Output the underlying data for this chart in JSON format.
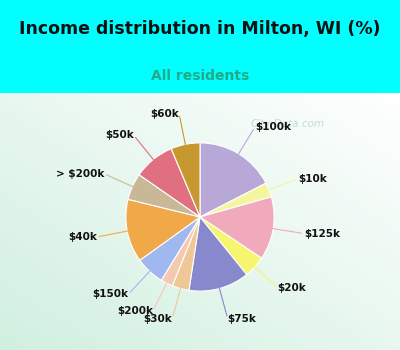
{
  "title": "Income distribution in Milton, WI (%)",
  "subtitle": "All residents",
  "watermark": "© City-Data.com",
  "labels": [
    "$100k",
    "$10k",
    "$125k",
    "$20k",
    "$75k",
    "$30k",
    "$200k",
    "$150k",
    "$40k",
    "> $200k",
    "$50k",
    "$60k"
  ],
  "values": [
    16.5,
    3.0,
    13.0,
    4.5,
    12.5,
    3.5,
    2.5,
    6.0,
    13.0,
    5.5,
    8.5,
    6.0
  ],
  "colors": [
    "#b8a8d8",
    "#f5f5a0",
    "#f0aabb",
    "#f5f570",
    "#8888cc",
    "#f0c898",
    "#f5c8b0",
    "#a0b8f0",
    "#f0a848",
    "#c8b898",
    "#e07080",
    "#c89830"
  ],
  "bg_cyan": "#00ffff",
  "bg_chart_colors": [
    "#ffffff",
    "#d8f0e0"
  ],
  "title_color": "#111111",
  "subtitle_color": "#22aa88",
  "label_fontsize": 7.5,
  "title_fontsize": 12.5,
  "subtitle_fontsize": 10
}
